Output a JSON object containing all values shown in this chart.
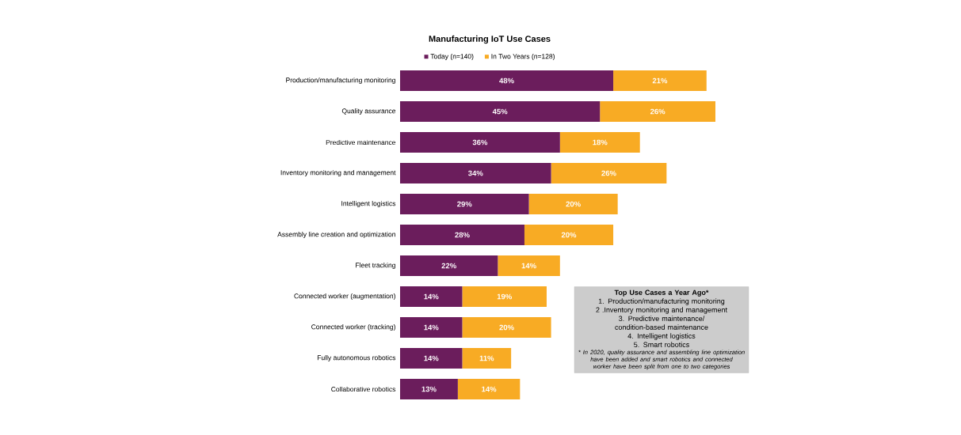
{
  "chart_data": {
    "type": "bar",
    "orientation": "horizontal",
    "stacked": true,
    "title": "Manufacturing IoT Use Cases",
    "categories": [
      "Production/manufacturing monitoring",
      "Quality assurance",
      "Predictive maintenance",
      "Inventory monitoring and management",
      "Intelligent logistics",
      "Assembly line creation and optimization",
      "Fleet tracking",
      "Connected worker (augmentation)",
      "Connected worker (tracking)",
      "Fully autonomous robotics",
      "Collaborative robotics"
    ],
    "series": [
      {
        "name": "Today (n=140)",
        "color": "#6b1d5c",
        "values": [
          48,
          45,
          36,
          34,
          29,
          28,
          22,
          14,
          14,
          14,
          13
        ],
        "value_labels": [
          "48%",
          "45%",
          "36%",
          "34%",
          "29%",
          "28%",
          "22%",
          "14%",
          "14%",
          "14%",
          "13%"
        ]
      },
      {
        "name": "In Two Years (n=128)",
        "color": "#f8ab24",
        "values": [
          21,
          26,
          18,
          26,
          20,
          20,
          14,
          19,
          20,
          11,
          14
        ],
        "value_labels": [
          "21%",
          "26%",
          "18%",
          "26%",
          "20%",
          "20%",
          "14%",
          "19%",
          "20%",
          "11%",
          "14%"
        ]
      }
    ],
    "legend": "top",
    "annotations": [
      "Top Use Cases a Year Ago*",
      "1. Production/manufacturing monitoring",
      "2 .Inventory monitoring and management",
      "3. Predictive maintenance/ condition-based maintenance",
      "4. Intelligent logistics",
      "5. Smart robotics",
      "* In 2020, quality assurance and assembling line optimization have been added and smart robotics and connected worker have been split from one to two categories"
    ]
  }
}
